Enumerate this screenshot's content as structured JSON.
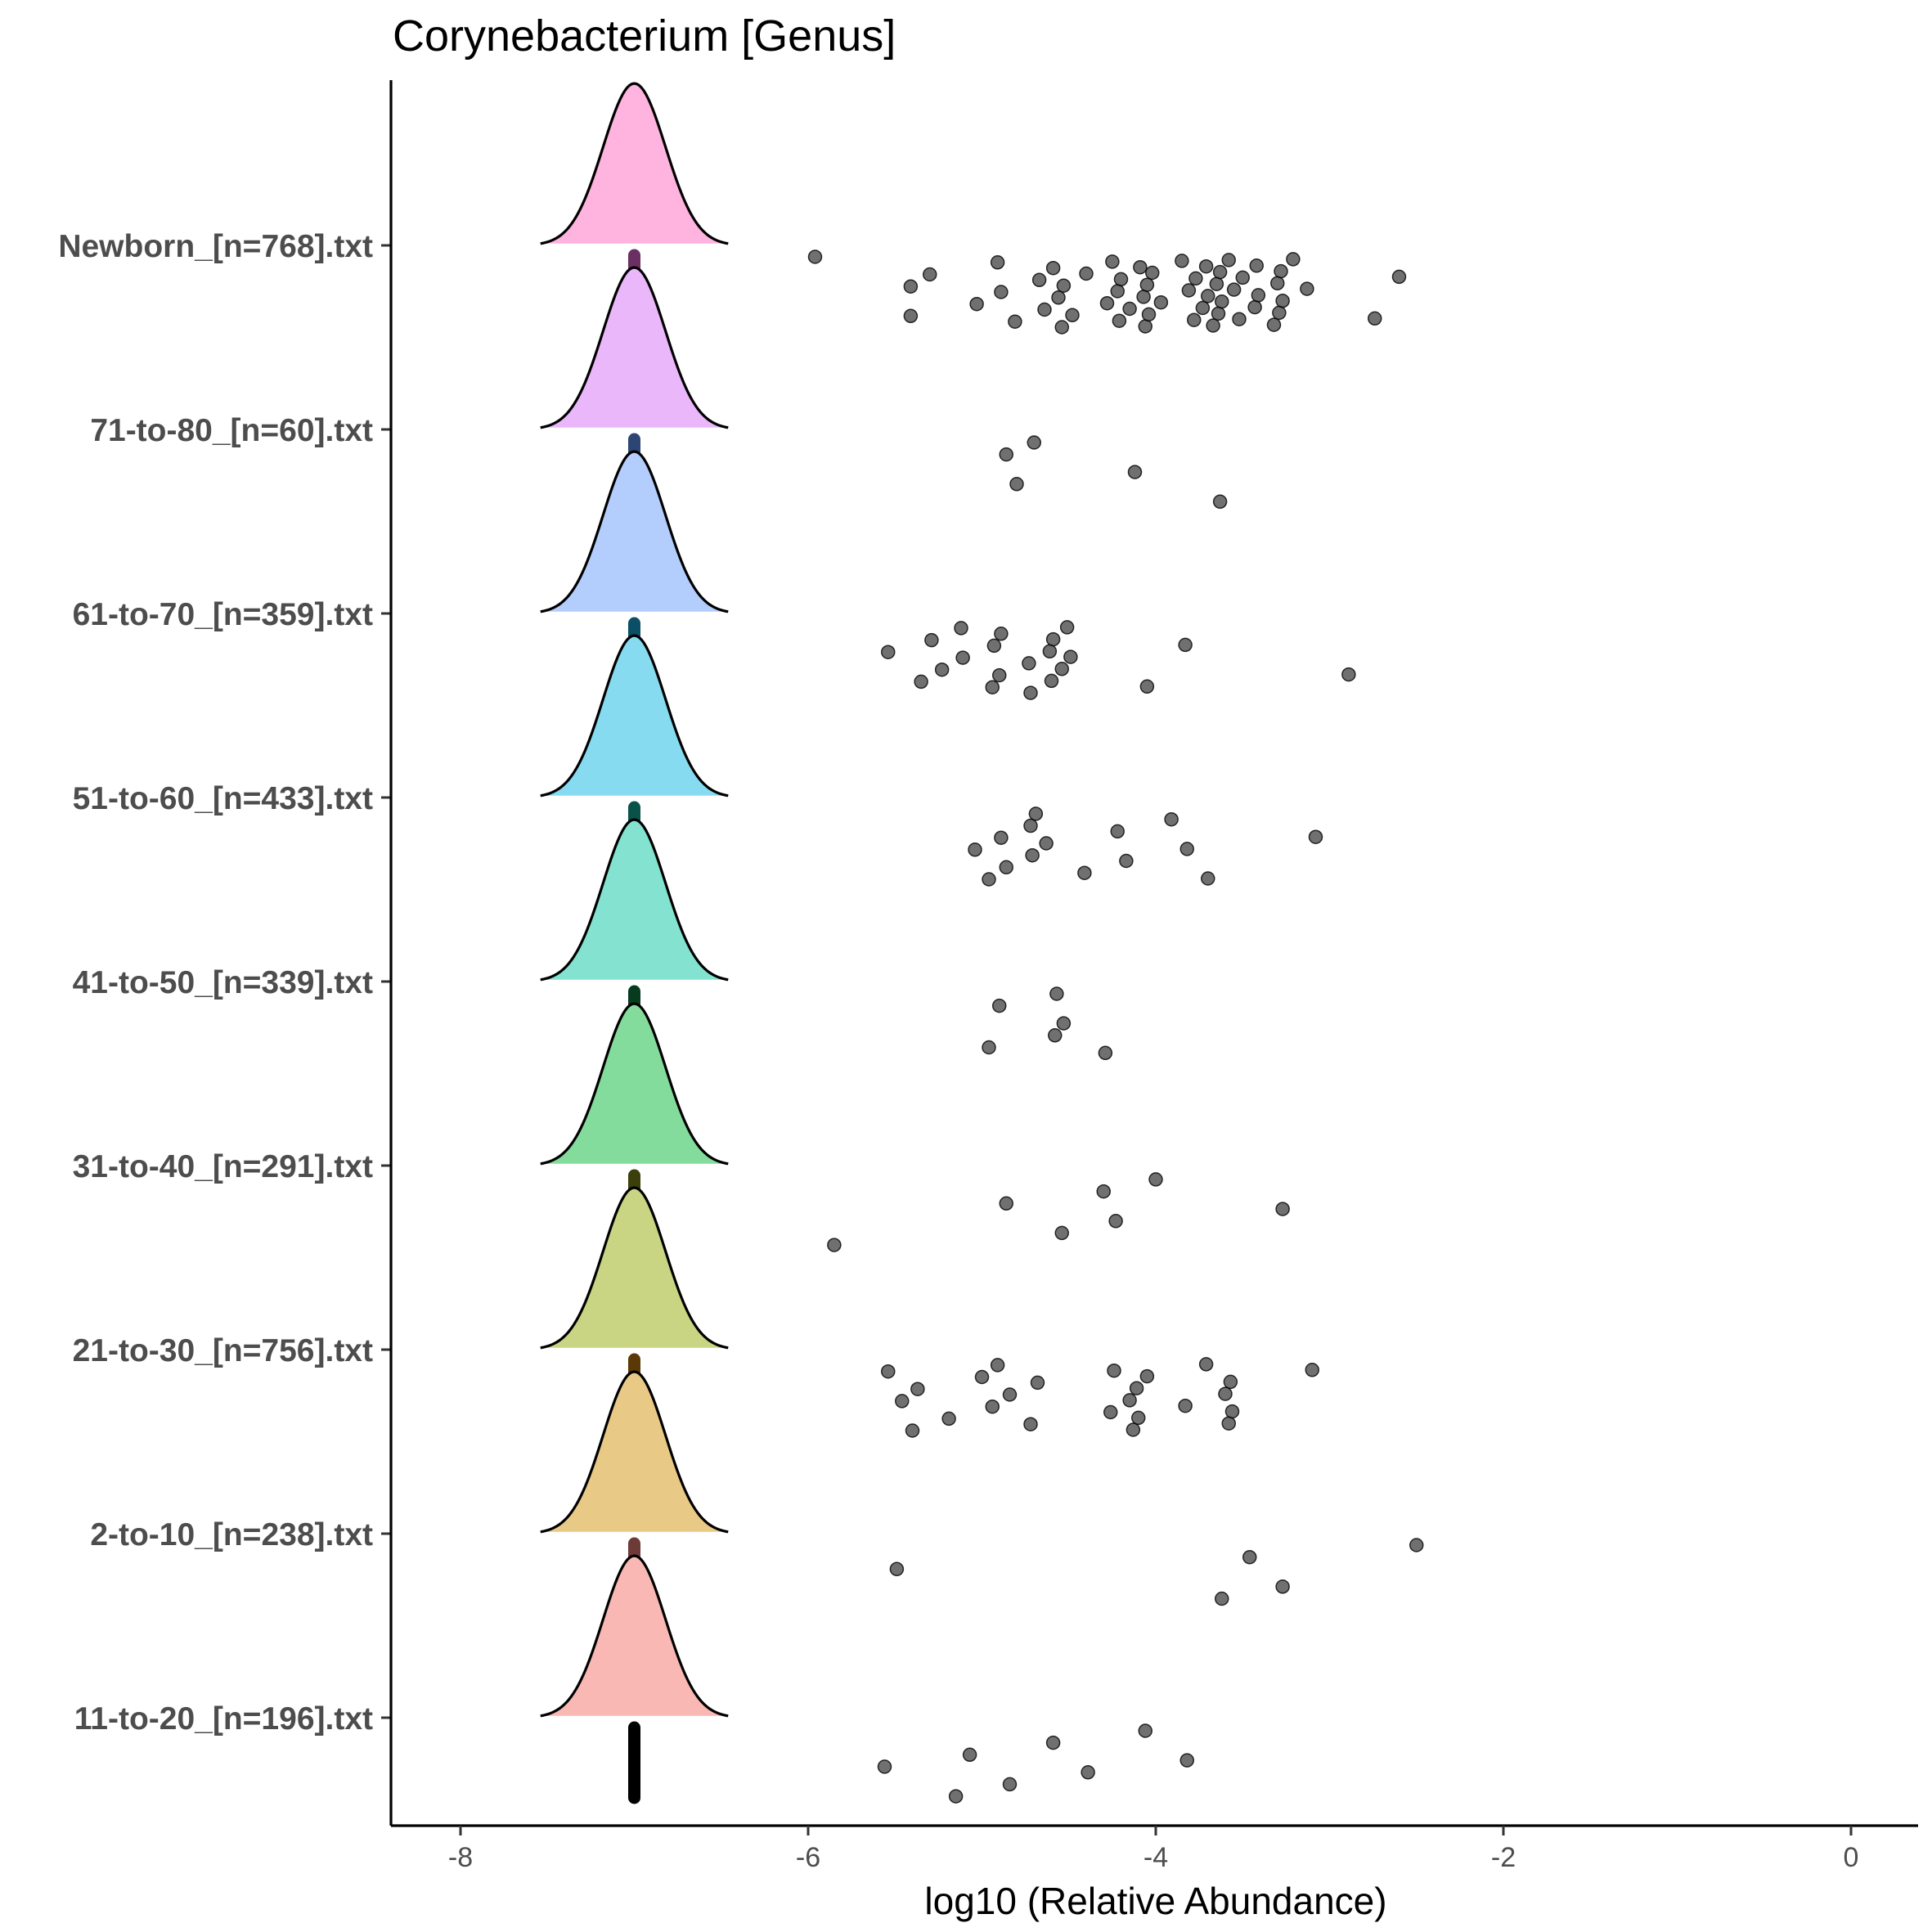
{
  "chart_data": {
    "type": "ridgeline",
    "title": "Corynebacterium [Genus]",
    "xlabel": "log10 (Relative Abundance)",
    "ylabel": "",
    "xlim": [
      -8.4,
      0.4
    ],
    "x_ticks": [
      -8,
      -6,
      -4,
      -2,
      0
    ],
    "x_tick_labels": [
      "-8",
      "-6",
      "-4",
      "-2",
      "0"
    ],
    "grid": false,
    "legend": "none",
    "point_color": "#333333",
    "density_mean": -7.0,
    "density_sd": 0.18,
    "groups": [
      {
        "label": "Newborn_[n=768].txt",
        "fill": "#ffb3df",
        "bar": "#6b2f63",
        "points": [
          -5.96,
          -5.41,
          -5.41,
          -5.3,
          -5.03,
          -4.91,
          -4.89,
          -4.81,
          -4.67,
          -4.64,
          -4.59,
          -4.56,
          -4.54,
          -4.53,
          -4.48,
          -4.4,
          -4.28,
          -4.25,
          -4.22,
          -4.21,
          -4.2,
          -4.15,
          -4.09,
          -4.07,
          -4.06,
          -4.05,
          -4.04,
          -4.02,
          -3.97,
          -3.85,
          -3.81,
          -3.78,
          -3.77,
          -3.73,
          -3.71,
          -3.7,
          -3.67,
          -3.65,
          -3.64,
          -3.63,
          -3.62,
          -3.58,
          -3.55,
          -3.52,
          -3.5,
          -3.43,
          -3.42,
          -3.41,
          -3.32,
          -3.3,
          -3.29,
          -3.28,
          -3.27,
          -3.21,
          -3.13,
          -2.74,
          -2.6
        ]
      },
      {
        "label": "71-to-80_[n=60].txt",
        "fill": "#ebb7fb",
        "bar": "#2d4575",
        "points": [
          -4.86,
          -4.8,
          -4.7,
          -4.12,
          -3.63
        ]
      },
      {
        "label": "61-to-70_[n=359].txt",
        "fill": "#b3cdfd",
        "bar": "#0b4f66",
        "points": [
          -5.54,
          -5.35,
          -5.29,
          -5.23,
          -5.12,
          -5.11,
          -4.94,
          -4.93,
          -4.9,
          -4.89,
          -4.73,
          -4.72,
          -4.61,
          -4.6,
          -4.59,
          -4.54,
          -4.51,
          -4.49,
          -4.05,
          -3.83,
          -2.89
        ]
      },
      {
        "label": "51-to-60_[n=433].txt",
        "fill": "#87dbf1",
        "bar": "#08524a",
        "points": [
          -5.04,
          -4.96,
          -4.89,
          -4.86,
          -4.72,
          -4.71,
          -4.69,
          -4.63,
          -4.41,
          -4.22,
          -4.17,
          -3.91,
          -3.82,
          -3.7,
          -3.08
        ]
      },
      {
        "label": "41-to-50_[n=339].txt",
        "fill": "#84e2d0",
        "bar": "#063b1e",
        "points": [
          -4.96,
          -4.9,
          -4.58,
          -4.57,
          -4.53,
          -4.29
        ]
      },
      {
        "label": "31-to-40_[n=291].txt",
        "fill": "#84dc9c",
        "bar": "#3b3f0b",
        "points": [
          -5.85,
          -4.86,
          -4.54,
          -4.3,
          -4.23,
          -4.0,
          -3.27
        ]
      },
      {
        "label": "21-to-30_[n=756].txt",
        "fill": "#c9d582",
        "bar": "#5b3907",
        "points": [
          -5.54,
          -5.46,
          -5.4,
          -5.37,
          -5.19,
          -5.0,
          -4.94,
          -4.91,
          -4.84,
          -4.72,
          -4.68,
          -4.26,
          -4.24,
          -4.15,
          -4.13,
          -4.11,
          -4.1,
          -4.05,
          -3.83,
          -3.71,
          -3.6,
          -3.58,
          -3.57,
          -3.56,
          -3.1
        ]
      },
      {
        "label": "2-to-10_[n=238].txt",
        "fill": "#e8ca86",
        "bar": "#6e3a38",
        "points": [
          -5.49,
          -3.62,
          -3.46,
          -3.27,
          -2.5
        ]
      },
      {
        "label": "11-to-20_[n=196].txt",
        "fill": "#f9b8b3",
        "bar": "#000000",
        "points": [
          -5.56,
          -5.15,
          -5.07,
          -4.84,
          -4.59,
          -4.39,
          -4.06,
          -3.82
        ]
      }
    ]
  }
}
